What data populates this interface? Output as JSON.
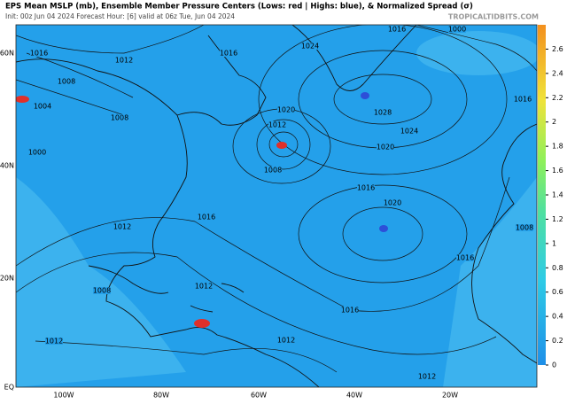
{
  "header": {
    "title": "EPS Mean MSLP (mb), Ensemble Member Pressure Centers (Lows: red | Highs: blue), & Normalized Spread (σ)",
    "info": "Init: 00z Jun 04 2024   Forecast Hour: [6]   valid at 06z Tue, Jun 04 2024",
    "source": "TROPICALTIDBITS.COM"
  },
  "map": {
    "lat_labels": [
      "60N",
      "40N",
      "20N",
      "EQ"
    ],
    "lon_labels": [
      "100W",
      "80W",
      "60W",
      "40W",
      "20W"
    ],
    "isobar_labels": [
      "1016",
      "1012",
      "1008",
      "1004",
      "1008",
      "1000",
      "1016",
      "1024",
      "1016",
      "1000",
      "1028",
      "1020",
      "1012",
      "1024",
      "1020",
      "1008",
      "1016",
      "1020",
      "1016",
      "1012",
      "1016",
      "1016",
      "1012",
      "1012",
      "1012",
      "1008",
      "1012",
      "1008",
      "1016"
    ]
  },
  "colorbar": {
    "range": [
      0,
      2.8
    ],
    "ticks": [
      0,
      0.2,
      0.4,
      0.6,
      0.8,
      1,
      1.2,
      1.4,
      1.6,
      1.8,
      2,
      2.2,
      2.4,
      2.6
    ]
  }
}
